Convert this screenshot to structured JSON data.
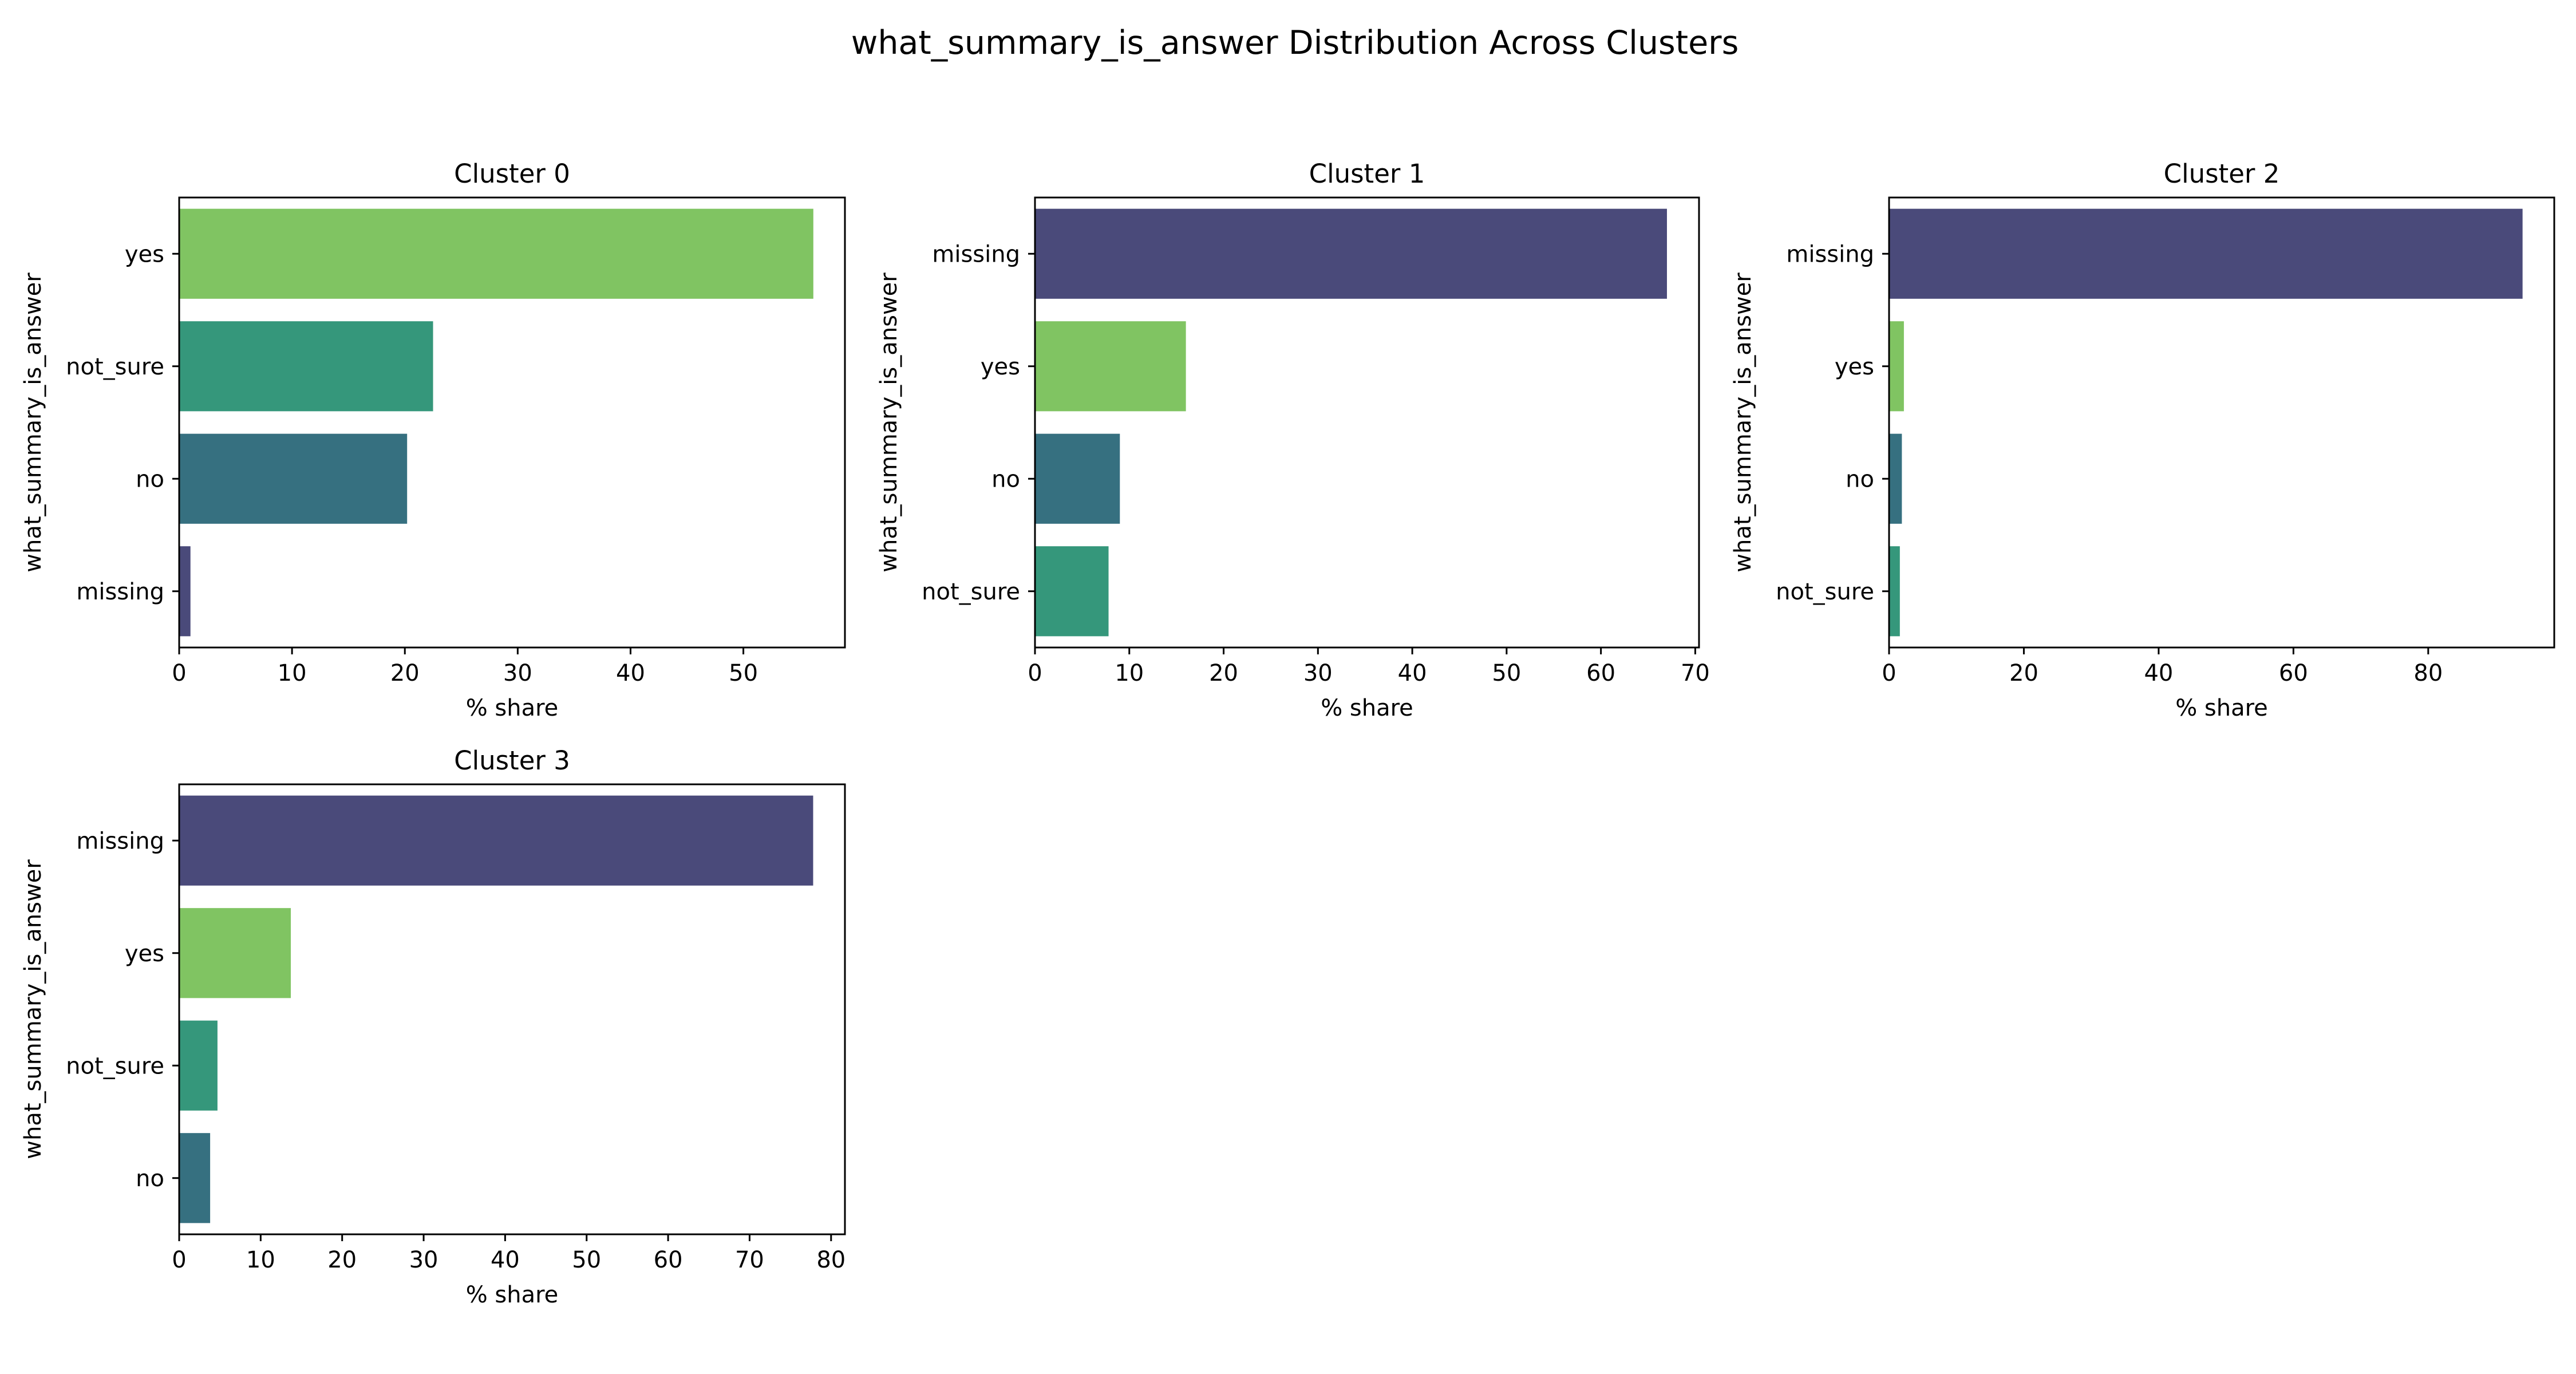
{
  "chart_data": {
    "title": "what_summary_is_answer Distribution Across Clusters",
    "colors": {
      "missing": "#4a4a7a",
      "yes": "#80c462",
      "not_sure": "#35977b",
      "no": "#367080"
    },
    "panels": [
      {
        "type": "bar",
        "orientation": "horizontal",
        "title": "Cluster 0",
        "xlabel": "% share",
        "ylabel": "what_summary_is_answer",
        "categories": [
          "yes",
          "not_sure",
          "no",
          "missing"
        ],
        "values": [
          56.2,
          22.5,
          20.2,
          1.0
        ],
        "xlim": [
          0,
          59
        ],
        "xticks": [
          0,
          10,
          20,
          30,
          40,
          50
        ]
      },
      {
        "type": "bar",
        "orientation": "horizontal",
        "title": "Cluster 1",
        "xlabel": "% share",
        "ylabel": "what_summary_is_answer",
        "categories": [
          "missing",
          "yes",
          "no",
          "not_sure"
        ],
        "values": [
          67.0,
          16.0,
          9.0,
          7.8
        ],
        "xlim": [
          0,
          70.4
        ],
        "xticks": [
          0,
          10,
          20,
          30,
          40,
          50,
          60,
          70
        ]
      },
      {
        "type": "bar",
        "orientation": "horizontal",
        "title": "Cluster 2",
        "xlabel": "% share",
        "ylabel": "what_summary_is_answer",
        "categories": [
          "missing",
          "yes",
          "no",
          "not_sure"
        ],
        "values": [
          94.0,
          2.2,
          1.9,
          1.6
        ],
        "xlim": [
          0,
          98.7
        ],
        "xticks": [
          0,
          20,
          40,
          60,
          80
        ]
      },
      {
        "type": "bar",
        "orientation": "horizontal",
        "title": "Cluster 3",
        "xlabel": "% share",
        "ylabel": "what_summary_is_answer",
        "categories": [
          "missing",
          "yes",
          "not_sure",
          "no"
        ],
        "values": [
          77.8,
          13.7,
          4.7,
          3.8
        ],
        "xlim": [
          0,
          81.7
        ],
        "xticks": [
          0,
          10,
          20,
          30,
          40,
          50,
          60,
          70,
          80
        ]
      }
    ]
  }
}
